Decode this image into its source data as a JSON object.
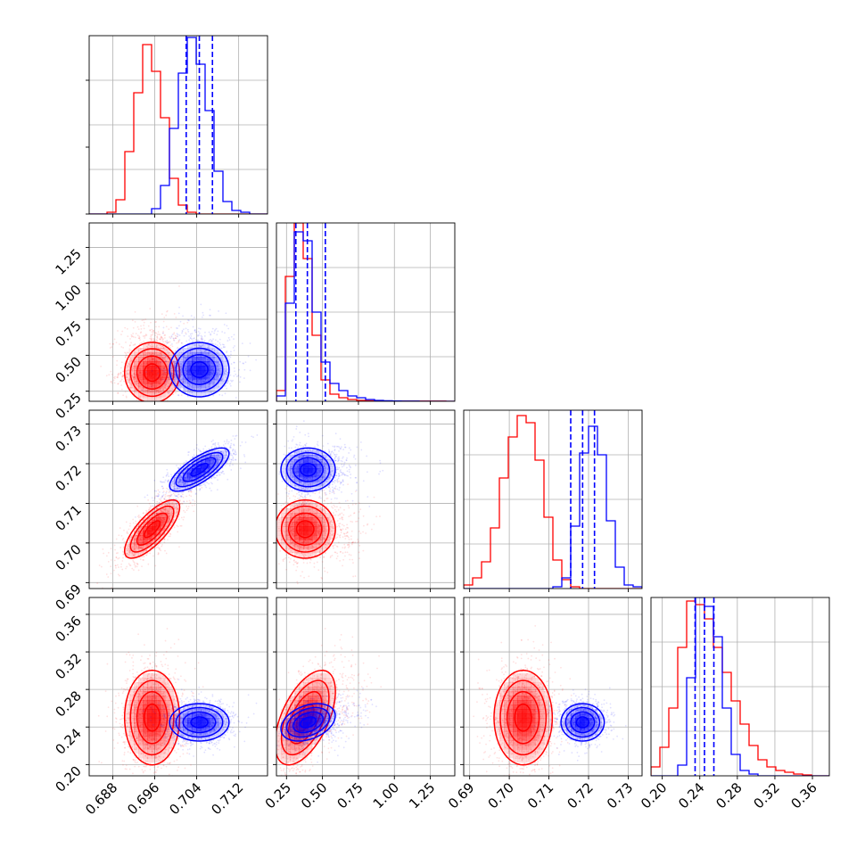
{
  "chart_data": {
    "type": "corner",
    "grid": true,
    "colors": {
      "red": "#ff0000",
      "blue": "#0000ff"
    },
    "parameters": [
      {
        "range": [
          0.6835,
          0.7175
        ],
        "ticks": [
          "0.688",
          "0.696",
          "0.704",
          "0.712"
        ],
        "tick_values": [
          0.688,
          0.696,
          0.704,
          0.712
        ]
      },
      {
        "range": [
          0.18,
          1.42
        ],
        "ticks": [
          "0.25",
          "0.50",
          "0.75",
          "1.00",
          "1.25"
        ],
        "tick_values": [
          0.25,
          0.5,
          0.75,
          1.0,
          1.25
        ]
      },
      {
        "range": [
          0.6885,
          0.7335
        ],
        "ticks": [
          "0.69",
          "0.70",
          "0.71",
          "0.72",
          "0.73"
        ],
        "tick_values": [
          0.69,
          0.7,
          0.71,
          0.72,
          0.73
        ]
      },
      {
        "range": [
          0.188,
          0.378
        ],
        "ticks": [
          "0.20",
          "0.24",
          "0.28",
          "0.32",
          "0.36"
        ],
        "tick_values": [
          0.2,
          0.24,
          0.28,
          0.32,
          0.36
        ]
      }
    ],
    "series": [
      {
        "color": "red",
        "means": [
          0.6955,
          0.38,
          0.7035,
          0.25
        ],
        "sds": [
          0.0025,
          0.1,
          0.0035,
          0.024
        ],
        "corr": {
          "0-1": 0.0,
          "0-2": 0.75,
          "0-3": 0.0,
          "1-2": 0.0,
          "1-3": 0.55,
          "2-3": 0.0
        }
      },
      {
        "color": "blue",
        "means": [
          0.7045,
          0.4,
          0.7185,
          0.245
        ],
        "sds": [
          0.0027,
          0.09,
          0.0026,
          0.0095
        ],
        "corr": {
          "0-1": 0.0,
          "0-2": 0.75,
          "0-3": 0.0,
          "1-2": 0.0,
          "1-3": 0.35,
          "2-3": 0.0
        }
      }
    ],
    "histograms": [
      {
        "bin_edges": [
          0.6835,
          0.6852,
          0.6869,
          0.6886,
          0.6903,
          0.692,
          0.6937,
          0.6954,
          0.6971,
          0.6988,
          0.7005,
          0.7022,
          0.7039,
          0.7056,
          0.7073,
          0.709,
          0.7107,
          0.7124,
          0.7141,
          0.7158,
          0.7175
        ],
        "red": [
          0,
          0,
          0.01,
          0.08,
          0.35,
          0.68,
          0.95,
          0.8,
          0.54,
          0.2,
          0.05,
          0.01,
          0,
          0,
          0,
          0,
          0,
          0,
          0,
          0
        ],
        "blue": [
          0,
          0,
          0,
          0,
          0,
          0,
          0,
          0.03,
          0.16,
          0.48,
          0.79,
          0.99,
          0.84,
          0.58,
          0.24,
          0.07,
          0.02,
          0.01,
          0,
          0
        ],
        "blue_quantiles": [
          0.702,
          0.7045,
          0.707
        ]
      },
      {
        "bin_edges": [
          0.18,
          0.242,
          0.304,
          0.366,
          0.428,
          0.49,
          0.552,
          0.614,
          0.676,
          0.738,
          0.8,
          0.862,
          0.924,
          0.986,
          1.048,
          1.11,
          1.172,
          1.234,
          1.296,
          1.358,
          1.42
        ],
        "red": [
          0.06,
          0.7,
          1.0,
          0.8,
          0.37,
          0.12,
          0.04,
          0.02,
          0.01,
          0.005,
          0.003,
          0.002,
          0.002,
          0.001,
          0.001,
          0.001,
          0.001,
          0.001,
          0.001,
          0
        ],
        "blue": [
          0.03,
          0.55,
          0.95,
          0.9,
          0.5,
          0.22,
          0.1,
          0.06,
          0.03,
          0.02,
          0.01,
          0.005,
          0.003,
          0.002,
          0.001,
          0.001,
          0,
          0,
          0,
          0
        ],
        "blue_quantiles": [
          0.315,
          0.395,
          0.52
        ]
      },
      {
        "bin_edges": [
          0.6885,
          0.69075,
          0.693,
          0.69525,
          0.6975,
          0.69975,
          0.702,
          0.70425,
          0.7065,
          0.70875,
          0.711,
          0.71325,
          0.7155,
          0.71775,
          0.72,
          0.72225,
          0.7245,
          0.72675,
          0.729,
          0.73125,
          0.7335
        ],
        "red": [
          0.02,
          0.06,
          0.15,
          0.34,
          0.62,
          0.85,
          0.97,
          0.93,
          0.72,
          0.4,
          0.16,
          0.05,
          0.01,
          0,
          0,
          0,
          0,
          0,
          0,
          0
        ],
        "blue": [
          0,
          0,
          0,
          0,
          0,
          0,
          0,
          0,
          0,
          0,
          0.01,
          0.06,
          0.35,
          0.76,
          0.91,
          0.75,
          0.38,
          0.12,
          0.02,
          0.01
        ],
        "blue_quantiles": [
          0.7155,
          0.7185,
          0.7215
        ]
      },
      {
        "bin_edges": [
          0.188,
          0.1975,
          0.207,
          0.2165,
          0.226,
          0.2355,
          0.245,
          0.2545,
          0.264,
          0.2735,
          0.283,
          0.2925,
          0.302,
          0.3115,
          0.321,
          0.3305,
          0.34,
          0.3495,
          0.359,
          0.3685,
          0.378
        ],
        "red": [
          0.05,
          0.16,
          0.38,
          0.72,
          0.98,
          0.96,
          0.88,
          0.72,
          0.58,
          0.42,
          0.29,
          0.17,
          0.09,
          0.05,
          0.03,
          0.02,
          0.01,
          0.005,
          0,
          0
        ],
        "blue": [
          0,
          0,
          0,
          0.06,
          0.55,
          1.0,
          0.95,
          0.78,
          0.38,
          0.12,
          0.03,
          0.01,
          0,
          0,
          0,
          0,
          0,
          0,
          0,
          0
        ],
        "blue_quantiles": [
          0.235,
          0.245,
          0.255
        ]
      }
    ]
  }
}
